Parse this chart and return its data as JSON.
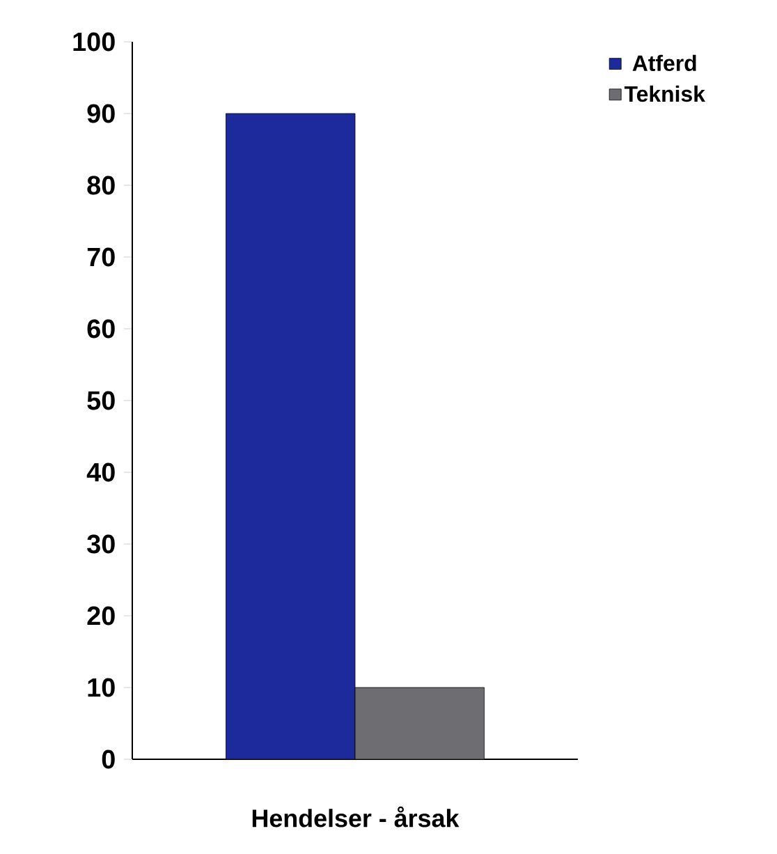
{
  "chart_data": {
    "type": "bar",
    "categories": [
      "Hendelser - årsak"
    ],
    "series": [
      {
        "name": "Atferd",
        "color": "#1c2a9c",
        "values": [
          90
        ]
      },
      {
        "name": "Teknisk",
        "color": "#6e6e72",
        "values": [
          10
        ]
      }
    ],
    "ylim": [
      0,
      100
    ],
    "yticks": [
      0,
      10,
      20,
      30,
      40,
      50,
      60,
      70,
      80,
      90,
      100
    ],
    "legend": "top right",
    "grid": false
  }
}
